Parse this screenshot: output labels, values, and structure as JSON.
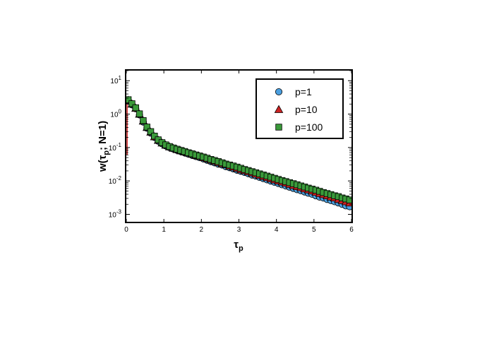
{
  "chart_data": {
    "type": "scatter",
    "x_axis": {
      "label": "τ",
      "label_sub": "p",
      "range": [
        0,
        6
      ],
      "ticks": [
        0,
        1,
        2,
        3,
        4,
        5,
        6
      ]
    },
    "y_axis": {
      "label_prefix": "w(τ",
      "label_sub": "p",
      "label_suffix": "; N=1)",
      "scale": "log",
      "range": [
        0.0006,
        20
      ],
      "ticks": [
        {
          "value": 0.001,
          "base": "10",
          "exp": "-3"
        },
        {
          "value": 0.01,
          "base": "10",
          "exp": "-2"
        },
        {
          "value": 0.1,
          "base": "10",
          "exp": "-1"
        },
        {
          "value": 1,
          "base": "10",
          "exp": "0"
        },
        {
          "value": 10,
          "base": "10",
          "exp": "1"
        }
      ]
    },
    "grid": false,
    "legend_position": "top-right",
    "series": [
      {
        "name": "p=1",
        "marker": "circle",
        "color": "#4a9fe0",
        "x": [
          0.05,
          0.15,
          0.25,
          0.35,
          0.45,
          0.55,
          0.65,
          0.75,
          0.85,
          0.95,
          1.05,
          1.15,
          1.25,
          1.35,
          1.45,
          1.55,
          1.65,
          1.75,
          1.85,
          1.95,
          2.05,
          2.15,
          2.25,
          2.35,
          2.45,
          2.55,
          2.65,
          2.75,
          2.85,
          2.95,
          3.05,
          3.15,
          3.25,
          3.35,
          3.45,
          3.55,
          3.65,
          3.75,
          3.85,
          3.95,
          4.05,
          4.15,
          4.25,
          4.35,
          4.45,
          4.55,
          4.65,
          4.75,
          4.85,
          4.95,
          5.05,
          5.15,
          5.25,
          5.35,
          5.45,
          5.55,
          5.65,
          5.75,
          5.85,
          5.95
        ],
        "y": [
          2.5,
          1.9,
          1.45,
          0.95,
          0.58,
          0.38,
          0.27,
          0.2,
          0.155,
          0.13,
          0.112,
          0.1,
          0.091,
          0.083,
          0.076,
          0.07,
          0.064,
          0.059,
          0.054,
          0.05,
          0.046,
          0.042,
          0.038,
          0.035,
          0.032,
          0.03,
          0.027,
          0.025,
          0.023,
          0.021,
          0.0195,
          0.018,
          0.0165,
          0.015,
          0.014,
          0.0128,
          0.0118,
          0.0108,
          0.0099,
          0.0091,
          0.0084,
          0.0077,
          0.0071,
          0.0065,
          0.006,
          0.0055,
          0.0051,
          0.0047,
          0.0043,
          0.004,
          0.0036,
          0.0033,
          0.0031,
          0.0028,
          0.0026,
          0.0024,
          0.0022,
          0.002,
          0.0018,
          0.0017
        ]
      },
      {
        "name": "p=10",
        "marker": "triangle",
        "color": "#cc2222",
        "x": [
          0.05,
          0.15,
          0.25,
          0.35,
          0.45,
          0.55,
          0.65,
          0.75,
          0.85,
          0.95,
          1.05,
          1.15,
          1.25,
          1.35,
          1.45,
          1.55,
          1.65,
          1.75,
          1.85,
          1.95,
          2.05,
          2.15,
          2.25,
          2.35,
          2.45,
          2.55,
          2.65,
          2.75,
          2.85,
          2.95,
          3.05,
          3.15,
          3.25,
          3.35,
          3.45,
          3.55,
          3.65,
          3.75,
          3.85,
          3.95,
          4.05,
          4.15,
          4.25,
          4.35,
          4.45,
          4.55,
          4.65,
          4.75,
          4.85,
          4.95,
          5.05,
          5.15,
          5.25,
          5.35,
          5.45,
          5.55,
          5.65,
          5.75,
          5.85,
          5.95
        ],
        "y": [
          2.6,
          2.0,
          1.5,
          1.0,
          0.62,
          0.4,
          0.29,
          0.21,
          0.165,
          0.137,
          0.118,
          0.105,
          0.095,
          0.087,
          0.08,
          0.074,
          0.068,
          0.063,
          0.058,
          0.054,
          0.05,
          0.046,
          0.042,
          0.039,
          0.036,
          0.033,
          0.031,
          0.028,
          0.026,
          0.024,
          0.022,
          0.0205,
          0.019,
          0.0175,
          0.016,
          0.0148,
          0.0137,
          0.0127,
          0.0117,
          0.0108,
          0.01,
          0.0093,
          0.0086,
          0.0079,
          0.0073,
          0.0068,
          0.0063,
          0.0058,
          0.0054,
          0.005,
          0.0046,
          0.0042,
          0.0039,
          0.0036,
          0.0033,
          0.0031,
          0.0028,
          0.0026,
          0.0024,
          0.0022
        ]
      },
      {
        "name": "p=100",
        "marker": "square",
        "color": "#3a9a3a",
        "x": [
          0.05,
          0.15,
          0.25,
          0.35,
          0.45,
          0.55,
          0.65,
          0.75,
          0.85,
          0.95,
          1.05,
          1.15,
          1.25,
          1.35,
          1.45,
          1.55,
          1.65,
          1.75,
          1.85,
          1.95,
          2.05,
          2.15,
          2.25,
          2.35,
          2.45,
          2.55,
          2.65,
          2.75,
          2.85,
          2.95,
          3.05,
          3.15,
          3.25,
          3.35,
          3.45,
          3.55,
          3.65,
          3.75,
          3.85,
          3.95,
          4.05,
          4.15,
          4.25,
          4.35,
          4.45,
          4.55,
          4.65,
          4.75,
          4.85,
          4.95,
          5.05,
          5.15,
          5.25,
          5.35,
          5.45,
          5.55,
          5.65,
          5.75,
          5.85,
          5.95
        ],
        "y": [
          2.7,
          2.05,
          1.55,
          1.02,
          0.64,
          0.41,
          0.3,
          0.22,
          0.17,
          0.14,
          0.12,
          0.107,
          0.097,
          0.089,
          0.082,
          0.076,
          0.07,
          0.065,
          0.06,
          0.056,
          0.052,
          0.048,
          0.044,
          0.041,
          0.038,
          0.035,
          0.032,
          0.03,
          0.028,
          0.026,
          0.024,
          0.022,
          0.0205,
          0.019,
          0.0176,
          0.0163,
          0.0151,
          0.014,
          0.013,
          0.012,
          0.0111,
          0.0103,
          0.0096,
          0.0089,
          0.0083,
          0.0077,
          0.0071,
          0.0066,
          0.0061,
          0.0057,
          0.0053,
          0.0049,
          0.0045,
          0.0042,
          0.0039,
          0.0036,
          0.0034,
          0.0031,
          0.0029,
          0.0027
        ]
      },
      {
        "name": "",
        "marker": "line",
        "color": "#cc2222",
        "x": [
          0.02,
          0.02,
          0.1,
          0.3,
          0.5,
          0.7,
          1.0,
          1.5,
          2.0,
          2.5,
          3.0,
          3.5,
          4.0,
          4.5,
          5.0,
          5.5,
          6.0
        ],
        "y": [
          0.06,
          2.6,
          2.3,
          1.25,
          0.52,
          0.26,
          0.13,
          0.08,
          0.054,
          0.034,
          0.023,
          0.0155,
          0.0105,
          0.0071,
          0.0048,
          0.0032,
          0.0022
        ]
      }
    ]
  }
}
